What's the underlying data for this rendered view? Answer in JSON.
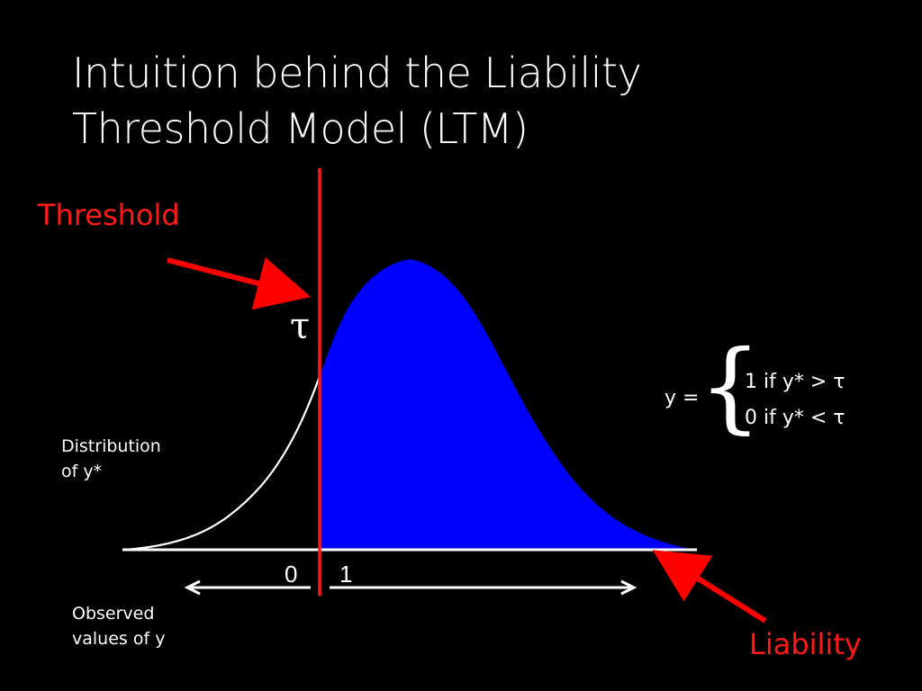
{
  "title": {
    "line1": "Intuition behind the Liability",
    "line2": "Threshold Model (LTM)"
  },
  "labels": {
    "threshold": "Threshold",
    "tau": "τ",
    "distribution_line1": "Distribution",
    "distribution_line2": "of y*",
    "observed_line1": "Observed",
    "observed_line2": "values of y",
    "liability": "Liability",
    "zero": "0",
    "one": "1"
  },
  "equation": {
    "lhs": "y =",
    "case1": "1 if y* > τ",
    "case2": "0 if y* < τ",
    "brace": "{"
  },
  "colors": {
    "background": "#000000",
    "fill": "#0000ff",
    "threshold_line": "#ff1a1a",
    "arrows": "#ff0000",
    "text": "#ffffff"
  }
}
